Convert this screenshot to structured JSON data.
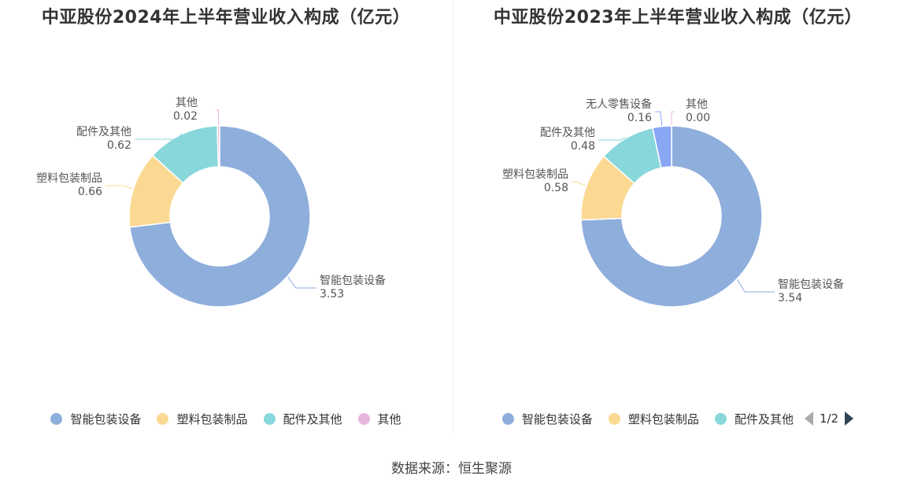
{
  "chart_data": [
    {
      "type": "pie",
      "title": "中亚股份2024年上半年营业收入构成（亿元）",
      "slices": [
        {
          "label": "智能包装设备",
          "value": 3.53,
          "display": "3.53",
          "color": "#8eaedc"
        },
        {
          "label": "塑料包装制品",
          "value": 0.66,
          "display": "0.66",
          "color": "#fcd993"
        },
        {
          "label": "配件及其他",
          "value": 0.62,
          "display": "0.62",
          "color": "#88d7da"
        },
        {
          "label": "其他",
          "value": 0.02,
          "display": "0.02",
          "color": "#e8b6dd"
        }
      ],
      "legend": [
        "智能包装设备",
        "塑料包装制品",
        "配件及其他",
        "其他"
      ],
      "legend_position": "bottom"
    },
    {
      "type": "pie",
      "title": "中亚股份2023年上半年营业收入构成（亿元）",
      "slices": [
        {
          "label": "智能包装设备",
          "value": 3.54,
          "display": "3.54",
          "color": "#8eaedc"
        },
        {
          "label": "塑料包装制品",
          "value": 0.58,
          "display": "0.58",
          "color": "#fcd993"
        },
        {
          "label": "配件及其他",
          "value": 0.48,
          "display": "0.48",
          "color": "#88d7da"
        },
        {
          "label": "无人零售设备",
          "value": 0.16,
          "display": "0.16",
          "color": "#8aa7f5"
        },
        {
          "label": "其他",
          "value": 0.0,
          "display": "0.00",
          "color": "#e8b6dd"
        }
      ],
      "legend": [
        "智能包装设备",
        "塑料包装制品",
        "配件及其他"
      ],
      "legend_position": "bottom",
      "legend_page": "1/2"
    }
  ],
  "source": "数据来源：恒生聚源"
}
